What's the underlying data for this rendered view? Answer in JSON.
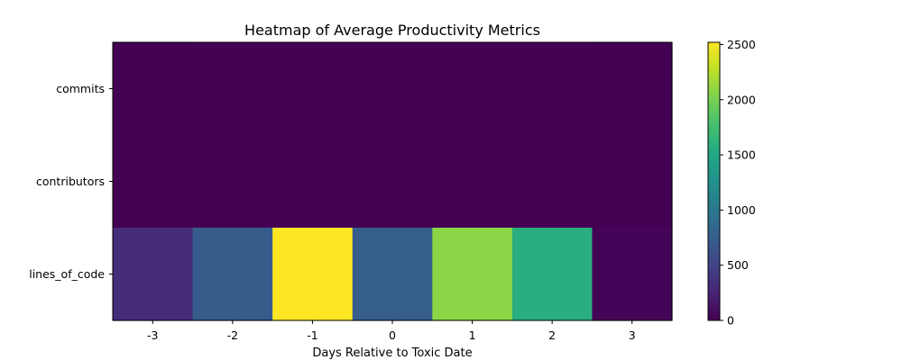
{
  "chart_data": {
    "type": "heatmap",
    "title": "Heatmap of Average Productivity Metrics",
    "xlabel": "Days Relative to Toxic Date",
    "ylabel": "",
    "x": [
      "-3",
      "-2",
      "-1",
      "0",
      "1",
      "2",
      "3"
    ],
    "y": [
      "commits",
      "contributors",
      "lines_of_code"
    ],
    "values": [
      [
        3,
        5,
        8,
        4,
        6,
        5,
        2
      ],
      [
        1,
        2,
        2,
        1,
        2,
        2,
        1
      ],
      [
        320,
        730,
        2520,
        750,
        2080,
        1570,
        30
      ]
    ],
    "colorbar": {
      "ticks": [
        0,
        500,
        1000,
        1500,
        2000,
        2500
      ],
      "range": [
        0,
        2520
      ],
      "colormap": "viridis"
    }
  }
}
